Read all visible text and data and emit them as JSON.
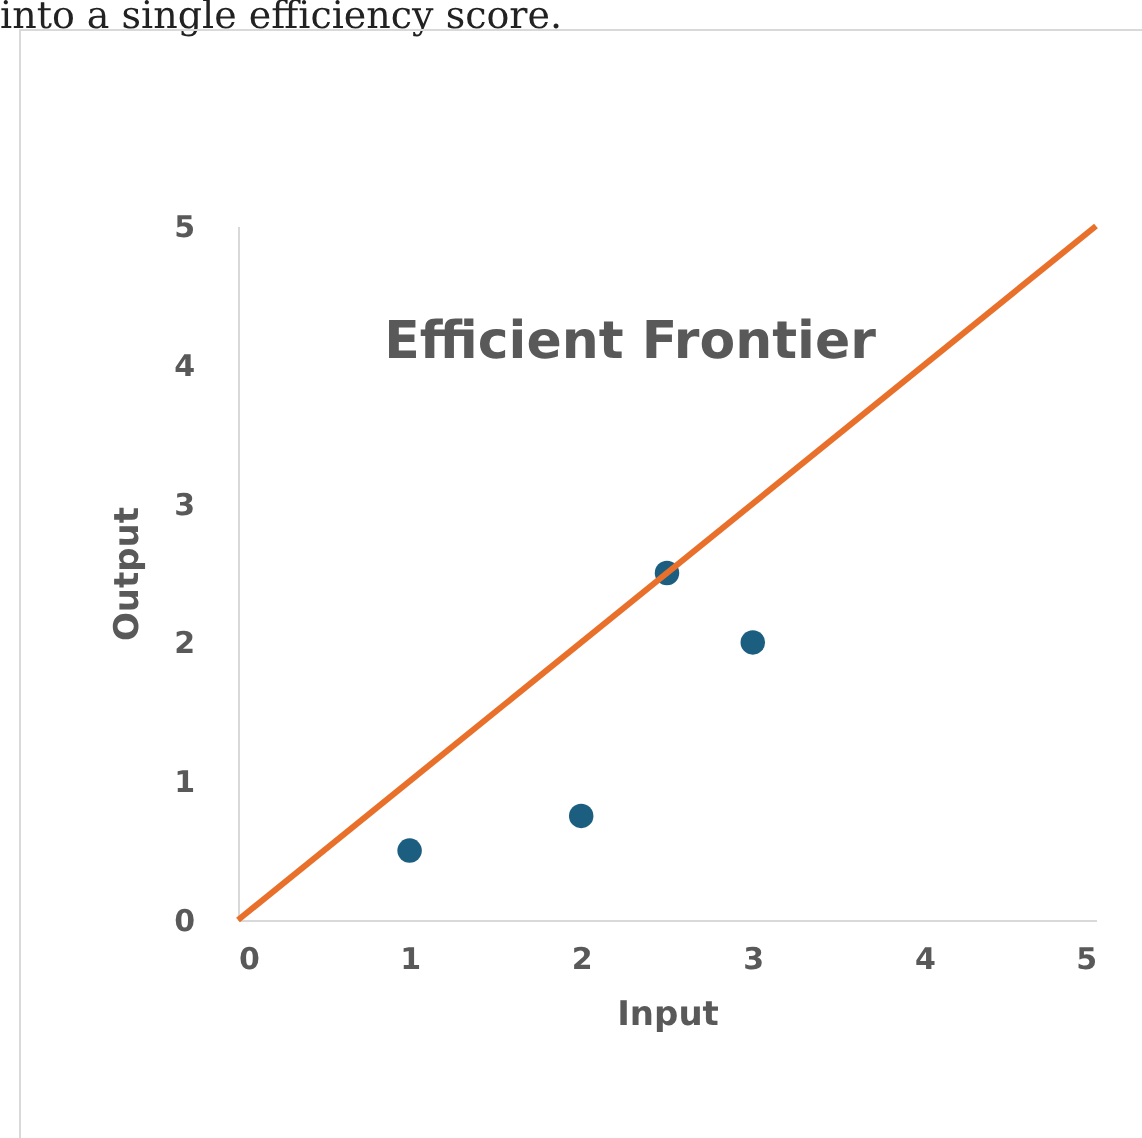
{
  "chart_data": {
    "type": "scatter",
    "xlabel": "Input",
    "ylabel": "Output",
    "xlim": [
      0,
      5
    ],
    "ylim": [
      0,
      5
    ],
    "xticks": [
      0,
      1,
      2,
      3,
      4,
      5
    ],
    "yticks": [
      0,
      1,
      2,
      3,
      4,
      5
    ],
    "grid": false,
    "series": [
      {
        "color": "#1b5e80",
        "marker": "circle",
        "x": [
          1,
          2,
          2.5,
          3
        ],
        "values": [
          0.5,
          0.75,
          2.5,
          2
        ]
      },
      {
        "type": "line",
        "color": "#e8702a",
        "line_style": "solid",
        "x": [
          0,
          5
        ],
        "values": [
          0,
          5
        ]
      }
    ],
    "annotations": [
      "into a single efficiency score.",
      "Efficient Frontier"
    ]
  }
}
